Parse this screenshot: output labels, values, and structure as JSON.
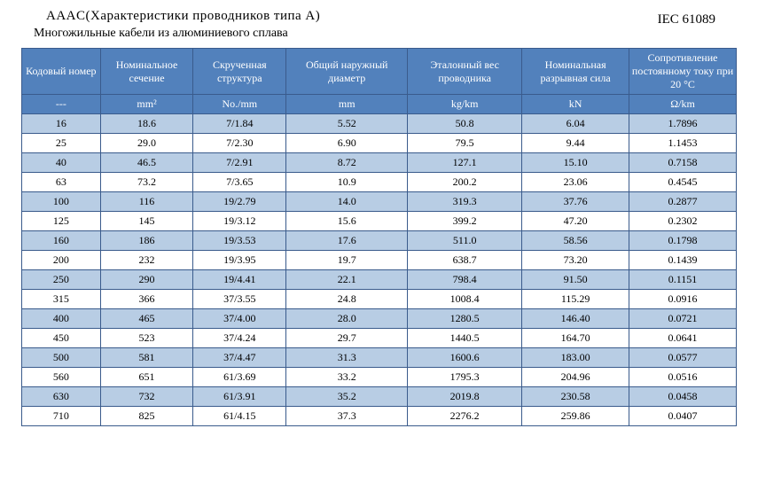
{
  "header": {
    "title_main": "AAAC(Характеристики  проводников  типа  A)",
    "title_sub": "Многожильные кабели из алюминиевого сплава",
    "standard": "IEC 61089"
  },
  "table": {
    "columns": [
      "Кодовый номер",
      "Номинальное сечение",
      "Скрученная структура",
      "Общий наружный диаметр",
      "Эталонный вес проводника",
      "Номинальная разрывная сила",
      "Сопротивление постоянному току при 20 °C"
    ],
    "units": [
      "---",
      "mm²",
      "No./mm",
      "mm",
      "kg/km",
      "kN",
      "Ω/km"
    ],
    "rows": [
      [
        "16",
        "18.6",
        "7/1.84",
        "5.52",
        "50.8",
        "6.04",
        "1.7896"
      ],
      [
        "25",
        "29.0",
        "7/2.30",
        "6.90",
        "79.5",
        "9.44",
        "1.1453"
      ],
      [
        "40",
        "46.5",
        "7/2.91",
        "8.72",
        "127.1",
        "15.10",
        "0.7158"
      ],
      [
        "63",
        "73.2",
        "7/3.65",
        "10.9",
        "200.2",
        "23.06",
        "0.4545"
      ],
      [
        "100",
        "116",
        "19/2.79",
        "14.0",
        "319.3",
        "37.76",
        "0.2877"
      ],
      [
        "125",
        "145",
        "19/3.12",
        "15.6",
        "399.2",
        "47.20",
        "0.2302"
      ],
      [
        "160",
        "186",
        "19/3.53",
        "17.6",
        "511.0",
        "58.56",
        "0.1798"
      ],
      [
        "200",
        "232",
        "19/3.95",
        "19.7",
        "638.7",
        "73.20",
        "0.1439"
      ],
      [
        "250",
        "290",
        "19/4.41",
        "22.1",
        "798.4",
        "91.50",
        "0.1151"
      ],
      [
        "315",
        "366",
        "37/3.55",
        "24.8",
        "1008.4",
        "115.29",
        "0.0916"
      ],
      [
        "400",
        "465",
        "37/4.00",
        "28.0",
        "1280.5",
        "146.40",
        "0.0721"
      ],
      [
        "450",
        "523",
        "37/4.24",
        "29.7",
        "1440.5",
        "164.70",
        "0.0641"
      ],
      [
        "500",
        "581",
        "37/4.47",
        "31.3",
        "1600.6",
        "183.00",
        "0.0577"
      ],
      [
        "560",
        "651",
        "61/3.69",
        "33.2",
        "1795.3",
        "204.96",
        "0.0516"
      ],
      [
        "630",
        "732",
        "61/3.91",
        "35.2",
        "2019.8",
        "230.58",
        "0.0458"
      ],
      [
        "710",
        "825",
        "61/4.15",
        "37.3",
        "2276.2",
        "259.86",
        "0.0407"
      ]
    ],
    "colors": {
      "header_bg": "#5281bc",
      "header_fg": "#ffffff",
      "border": "#3a5b8c",
      "row_odd_bg": "#b8cde4",
      "row_even_bg": "#ffffff",
      "page_bg": "#ffffff",
      "text": "#000000"
    },
    "col_widths_pct": [
      11,
      13,
      13,
      17,
      16,
      15,
      15
    ]
  }
}
